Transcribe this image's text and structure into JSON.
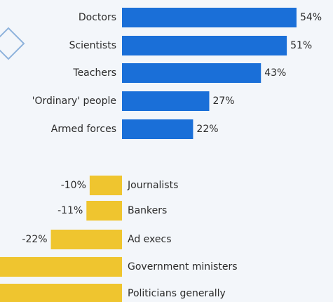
{
  "chart_data": {
    "type": "diverging-bar",
    "categories": [
      "Doctors",
      "Scientists",
      "Teachers",
      "'Ordinary' people",
      "Armed forces",
      "Journalists",
      "Bankers",
      "Ad execs",
      "Government ministers",
      "Politicians generally"
    ],
    "values": [
      54,
      51,
      43,
      27,
      22,
      -10,
      -11,
      -22,
      -45,
      -49
    ],
    "value_labels": [
      "54%",
      "51%",
      "43%",
      "27%",
      "22%",
      "-10%",
      "-11%",
      "-22%",
      null,
      null
    ],
    "positive_color": "#1a6fd8",
    "negative_color": "#efc52f"
  }
}
